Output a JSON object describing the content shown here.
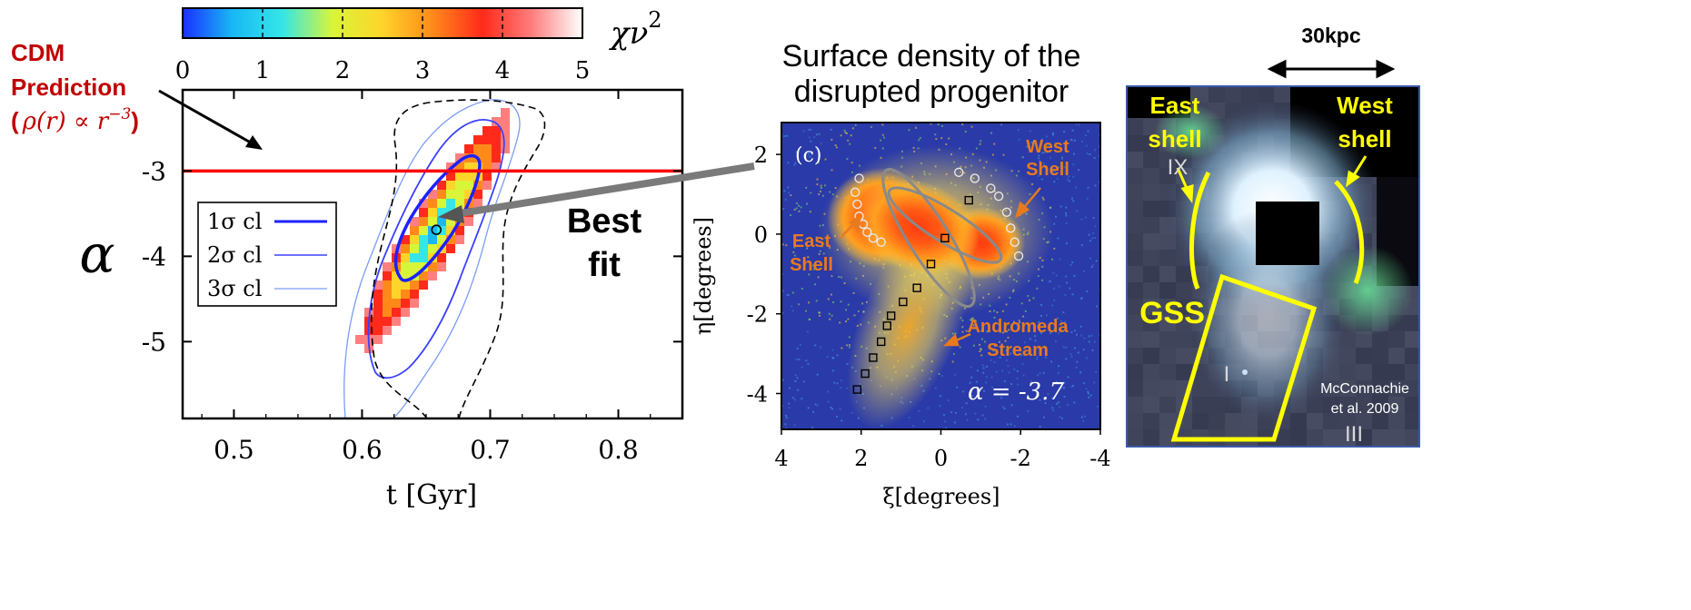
{
  "chart_data": [
    {
      "type": "heatmap",
      "panel": "left",
      "xlabel": "t [Gyr]",
      "ylabel": "α",
      "xlim": [
        0.46,
        0.85
      ],
      "ylim": [
        -5.9,
        -2.05
      ],
      "x_ticks": [
        0.5,
        0.6,
        0.7,
        0.8
      ],
      "x_tick_labels": [
        "0.5",
        "0.6",
        "0.7",
        "0.8"
      ],
      "y_ticks": [
        -3,
        -4,
        -5
      ],
      "y_tick_labels": [
        "-3",
        "-4",
        "-5"
      ],
      "colorbar": {
        "label": "χν",
        "label_sup": "2",
        "range": [
          0,
          5
        ],
        "ticks": [
          0,
          1,
          2,
          3,
          4,
          5
        ],
        "tick_labels": [
          "0",
          "1",
          "2",
          "3",
          "4",
          "5"
        ],
        "colors": [
          "#1b2fff",
          "#19b8f5",
          "#35e6e6",
          "#d8f53a",
          "#ffd42a",
          "#ff8a1a",
          "#ff2a1a",
          "#ff7f7f",
          "#ffffff"
        ]
      },
      "legend": {
        "placement": "left",
        "entries": [
          {
            "label": "1σ cl",
            "color": "#1c22ff",
            "width": 3
          },
          {
            "label": "2σ cl",
            "color": "#3a40ff",
            "width": 1.6
          },
          {
            "label": "3σ cl",
            "color": "#7b9cf5",
            "width": 1.2
          }
        ]
      },
      "prediction_line": {
        "y": -3,
        "color": "#ff0000"
      },
      "best_fit": {
        "x": 0.658,
        "y": -3.69,
        "label_line1": "Best",
        "label_line2": "fit"
      },
      "cdm_label": {
        "line1": "CDM",
        "line2": "Prediction",
        "formula_open": "(",
        "formula": "ρ(r) ∝ r",
        "formula_exp": "−3",
        "formula_close": ")",
        "color": "#c00000"
      }
    },
    {
      "type": "scatter",
      "panel": "middle",
      "title_line1": "Surface density of the",
      "title_line2": "disrupted progenitor",
      "panel_label": "(c)",
      "xlabel": "ξ[degrees]",
      "ylabel": "η[degrees]",
      "xlim": [
        4,
        -4
      ],
      "ylim": [
        -4.9,
        2.8
      ],
      "x_ticks": [
        4,
        2,
        0,
        -2,
        -4
      ],
      "x_tick_labels": [
        "4",
        "2",
        "0",
        "-2",
        "-4"
      ],
      "y_ticks": [
        2,
        0,
        -2,
        -4
      ],
      "y_tick_labels": [
        "2",
        "0",
        "-2",
        "-4"
      ],
      "annotation": "α = -3.7",
      "labels": {
        "west_shell_1": "West",
        "west_shell_2": "Shell",
        "east_shell_1": "East",
        "east_shell_2": "Shell",
        "stream_1": "Andromeda",
        "stream_2": "Stream"
      },
      "label_color": "#e87a1e",
      "stream_points": [
        [
          2.1,
          -3.9
        ],
        [
          1.9,
          -3.5
        ],
        [
          1.7,
          -3.1
        ],
        [
          1.5,
          -2.7
        ],
        [
          1.35,
          -2.3
        ],
        [
          1.25,
          -2.05
        ],
        [
          0.95,
          -1.7
        ],
        [
          0.6,
          -1.35
        ],
        [
          0.25,
          -0.75
        ],
        [
          -0.1,
          -0.1
        ],
        [
          -0.7,
          0.85
        ]
      ],
      "shell_circles": [
        [
          2.05,
          1.4
        ],
        [
          2.15,
          1.05
        ],
        [
          2.1,
          0.75
        ],
        [
          2.05,
          0.45
        ],
        [
          1.95,
          0.25
        ],
        [
          1.85,
          0.05
        ],
        [
          1.7,
          -0.1
        ],
        [
          1.5,
          -0.2
        ],
        [
          -0.45,
          1.55
        ],
        [
          -0.85,
          1.4
        ],
        [
          -1.25,
          1.15
        ],
        [
          -1.45,
          0.95
        ],
        [
          -1.65,
          0.55
        ],
        [
          -1.75,
          0.15
        ],
        [
          -1.85,
          -0.2
        ],
        [
          -1.95,
          -0.55
        ]
      ]
    },
    {
      "panel": "right",
      "scale_label": "30kpc",
      "east_shell_1": "East",
      "east_shell_2": "shell",
      "west_shell_1": "West",
      "west_shell_2": "shell",
      "gss": "GSS",
      "credit_1": "McConnachie",
      "credit_2": "et al. 2009",
      "field_ix": "IX",
      "field_i": "I",
      "field_iii": "III",
      "highlight_color": "#ffff00"
    }
  ]
}
